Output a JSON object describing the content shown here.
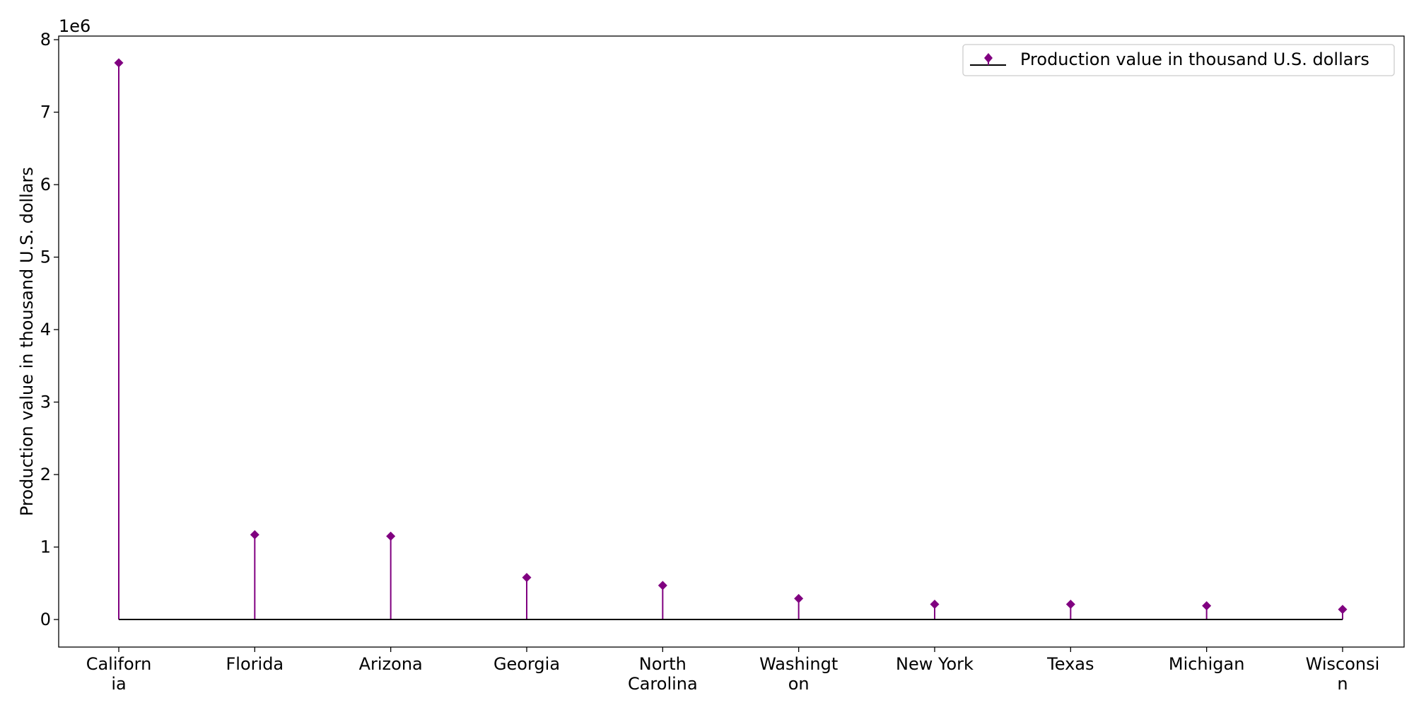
{
  "chart_data": {
    "type": "stem",
    "categories": [
      "Californ\nia",
      "Florida",
      "Arizona",
      "Georgia",
      "North\nCarolina",
      "Washingt\non",
      "New York",
      "Texas",
      "Michigan",
      "Wisconsi\nn"
    ],
    "series": [
      {
        "name": "Production value in thousand U.S. dollars",
        "values": [
          7680000,
          1170000,
          1150000,
          580000,
          470000,
          290000,
          210000,
          210000,
          190000,
          140000
        ],
        "color": "#800080"
      }
    ],
    "baseline_color": "#000000",
    "title": "",
    "xlabel": "",
    "ylabel": "Production value in thousand U.S. dollars",
    "y_offset_label": "1e6",
    "ylim": [
      -380000,
      8050000
    ],
    "yticks": [
      0,
      1000000,
      2000000,
      3000000,
      4000000,
      5000000,
      6000000,
      7000000,
      8000000
    ],
    "ytick_labels": [
      "0",
      "1",
      "2",
      "3",
      "4",
      "5",
      "6",
      "7",
      "8"
    ],
    "marker": "diamond",
    "grid": false,
    "legend": {
      "position": "top-right",
      "entries": [
        "Production value in thousand U.S. dollars"
      ]
    }
  }
}
